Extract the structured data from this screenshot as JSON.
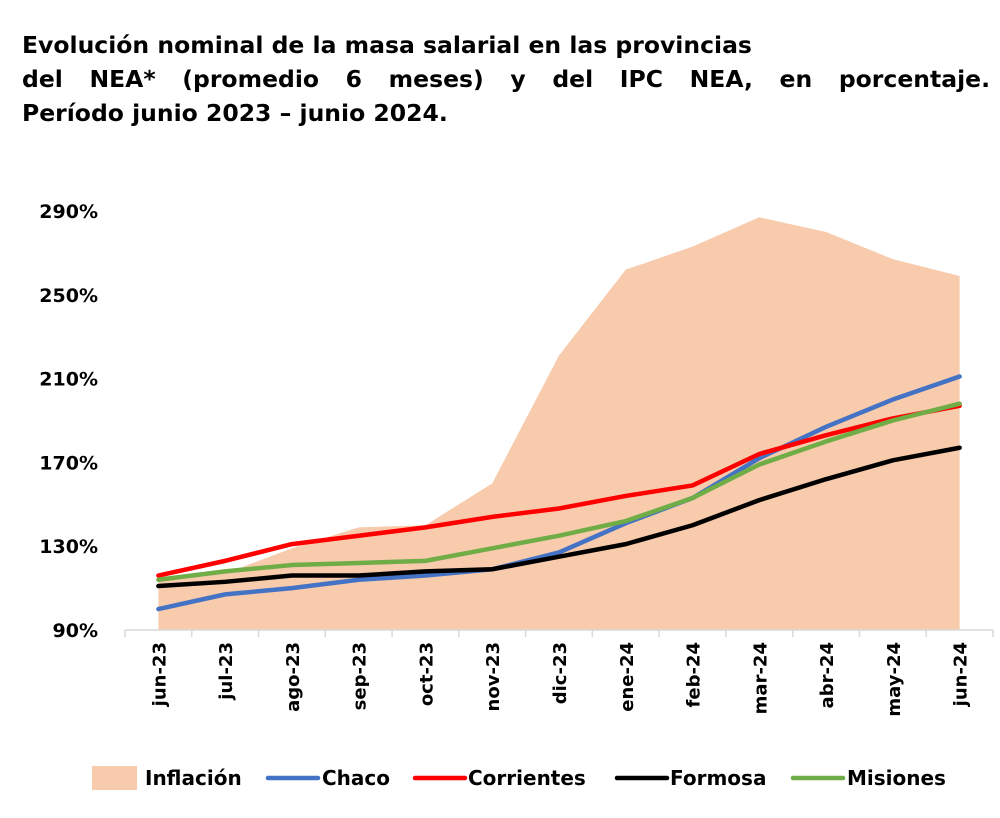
{
  "title": {
    "line1": "Evolución nominal de la masa salarial en las provincias",
    "line2": "del NEA* (promedio 6 meses) y del IPC NEA, en porcentaje.",
    "line3": "Período junio 2023 – junio 2024."
  },
  "chart_data": {
    "type": "line",
    "title": "Evolución nominal de la masa salarial en las provincias del NEA* (promedio 6 meses) y del IPC NEA, en porcentaje. Período junio 2023 – junio 2024.",
    "xlabel": "",
    "ylabel": "",
    "ylim": [
      90,
      290
    ],
    "yticks": [
      90,
      130,
      170,
      210,
      250,
      290
    ],
    "ytick_labels": [
      "90%",
      "130%",
      "170%",
      "210%",
      "250%",
      "290%"
    ],
    "grid": false,
    "legend_position": "bottom",
    "categories": [
      "jun-23",
      "jul-23",
      "ago-23",
      "sep-23",
      "oct-23",
      "nov-23",
      "dic-23",
      "ene-24",
      "feb-24",
      "mar-24",
      "abr-24",
      "may-24",
      "jun-24"
    ],
    "series": [
      {
        "name": "Inflación",
        "kind": "area",
        "color": "#F7CBAC",
        "values": [
          114,
          117,
          129,
          139,
          140,
          160,
          221,
          262,
          273,
          287,
          280,
          267,
          259
        ]
      },
      {
        "name": "Chaco",
        "kind": "line",
        "color": "#4472C4",
        "values": [
          100,
          107,
          110,
          114,
          116,
          119,
          127,
          141,
          153,
          172,
          187,
          200,
          211
        ]
      },
      {
        "name": "Corrientes",
        "kind": "line",
        "color": "#FF0000",
        "values": [
          116,
          123,
          131,
          135,
          139,
          144,
          148,
          154,
          159,
          174,
          183,
          191,
          197
        ]
      },
      {
        "name": "Formosa",
        "kind": "line",
        "color": "#000000",
        "values": [
          111,
          113,
          116,
          116,
          118,
          119,
          125,
          131,
          140,
          152,
          162,
          171,
          177
        ]
      },
      {
        "name": "Misiones",
        "kind": "line",
        "color": "#70AD47",
        "values": [
          114,
          118,
          121,
          122,
          123,
          129,
          135,
          142,
          153,
          169,
          180,
          190,
          198
        ]
      }
    ]
  }
}
